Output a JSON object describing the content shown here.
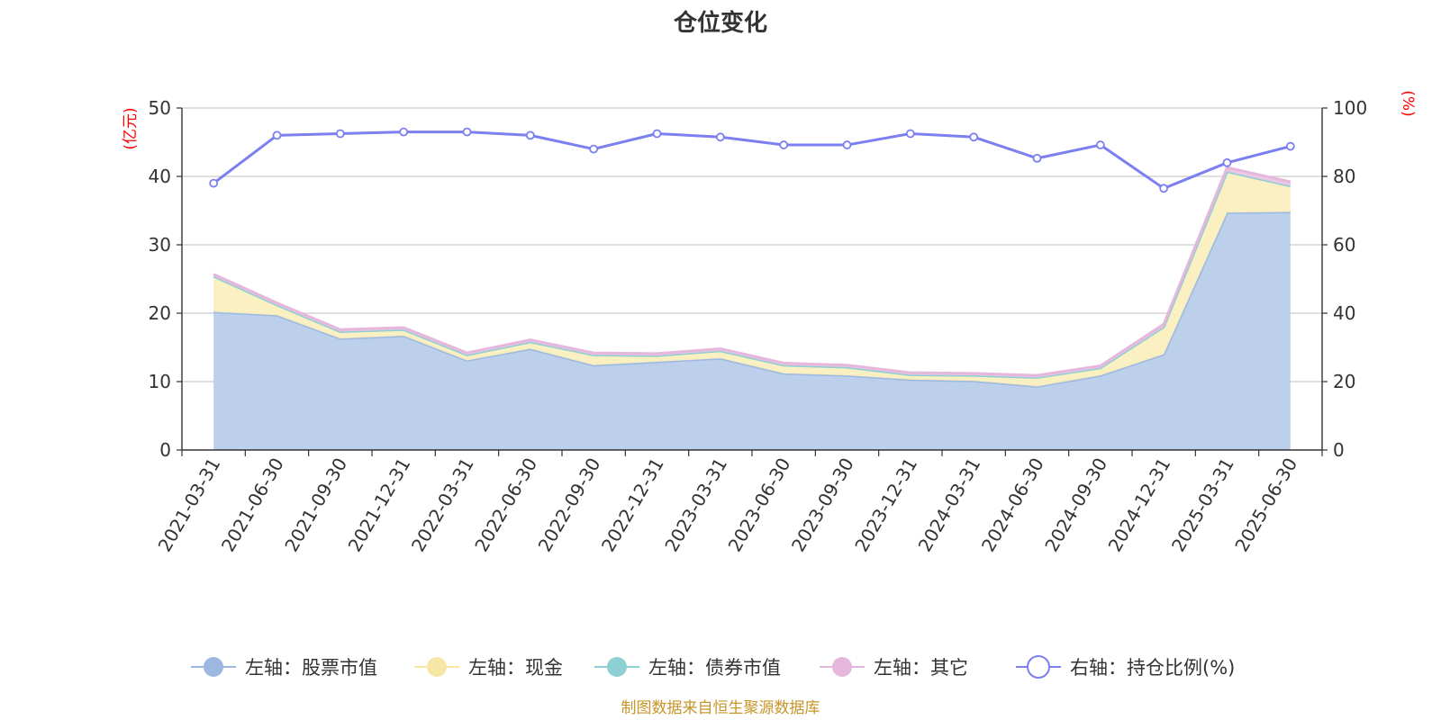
{
  "chart_data": {
    "type": "area",
    "title": "仓位变化",
    "x": [
      "2021-03-31",
      "2021-06-30",
      "2021-09-30",
      "2021-12-31",
      "2022-03-31",
      "2022-06-30",
      "2022-09-30",
      "2022-12-31",
      "2023-03-31",
      "2023-06-30",
      "2023-09-30",
      "2023-12-31",
      "2024-03-31",
      "2024-06-30",
      "2024-09-30",
      "2024-12-31",
      "2025-03-31",
      "2025-06-30"
    ],
    "left_axis": {
      "unit": "(亿元)",
      "ylim": [
        0,
        50
      ],
      "ticks": [
        0,
        10,
        20,
        30,
        40,
        50
      ]
    },
    "right_axis": {
      "unit": "(%)",
      "ylim": [
        0,
        100
      ],
      "ticks": [
        0,
        20,
        40,
        60,
        80,
        100
      ]
    },
    "grid": true,
    "legend_position": "bottom",
    "series": [
      {
        "name": "左轴：股票市值",
        "axis": "left",
        "stack": true,
        "color": "#9db8e0",
        "fill": "#b8cdea",
        "values": [
          20.2,
          19.7,
          16.3,
          16.7,
          13.1,
          14.8,
          12.4,
          12.9,
          13.4,
          11.2,
          10.9,
          10.3,
          10.1,
          9.3,
          10.9,
          14.0,
          34.7,
          34.8
        ]
      },
      {
        "name": "左轴：现金",
        "axis": "left",
        "stack": true,
        "color": "#f7e7a6",
        "fill": "#faefbe",
        "values": [
          5.2,
          1.5,
          1.0,
          0.9,
          0.8,
          1.0,
          1.5,
          0.9,
          1.1,
          1.2,
          1.2,
          0.7,
          0.8,
          1.3,
          1.1,
          4.0,
          6.0,
          3.8
        ]
      },
      {
        "name": "左轴：债券市值",
        "axis": "left",
        "stack": true,
        "color": "#8ecfd4",
        "fill": "#a8dde0",
        "values": [
          0,
          0,
          0,
          0,
          0,
          0,
          0,
          0,
          0,
          0,
          0,
          0,
          0,
          0,
          0,
          0,
          0,
          0
        ]
      },
      {
        "name": "左轴：其它",
        "axis": "left",
        "stack": true,
        "color": "#e6b7dc",
        "fill": "#ecc6e4",
        "values": [
          0.3,
          0.3,
          0.3,
          0.3,
          0.3,
          0.3,
          0.3,
          0.3,
          0.3,
          0.3,
          0.3,
          0.3,
          0.3,
          0.3,
          0.3,
          0.4,
          0.6,
          0.6
        ]
      },
      {
        "name": "右轴：持仓比例(%)",
        "axis": "right",
        "stack": false,
        "color": "#7b7ff0",
        "values": [
          78.0,
          92.0,
          92.5,
          93.0,
          93.0,
          92.0,
          88.0,
          92.5,
          91.5,
          89.2,
          89.2,
          92.5,
          91.5,
          85.3,
          89.2,
          76.5,
          84.0,
          88.8
        ]
      }
    ]
  },
  "footer": {
    "source": "制图数据来自恒生聚源数据库"
  },
  "colors": {
    "axis": "#333333",
    "grid": "#cccccc",
    "unit": "#ff0000",
    "footer": "#c8952a"
  }
}
